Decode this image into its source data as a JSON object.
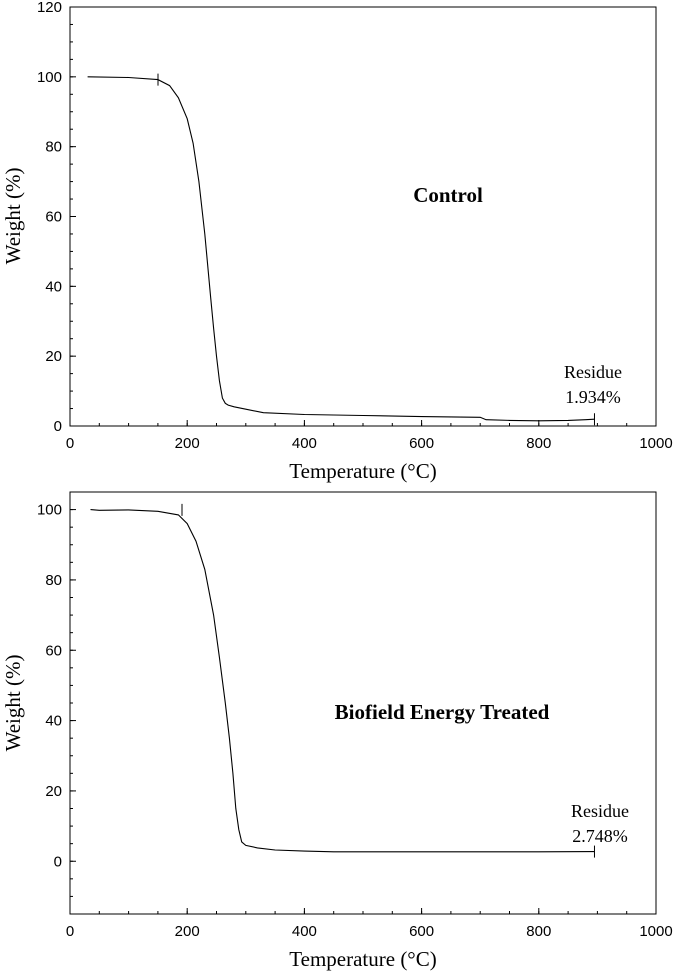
{
  "chart_data": [
    {
      "type": "line",
      "title": "Control",
      "xlabel": "Temperature (°C)",
      "ylabel": "Weight (%)",
      "xlim": [
        0,
        1000
      ],
      "ylim": [
        0,
        120
      ],
      "xticks": [
        "0",
        "200",
        "400",
        "600",
        "800",
        "1000"
      ],
      "yticks": [
        "0",
        "20",
        "40",
        "60",
        "80",
        "100",
        "120"
      ],
      "annotation": {
        "line1": "Residue",
        "line2": "1.934%",
        "x": 895,
        "y": 1.934
      },
      "grid": false,
      "series": [
        {
          "x": [
            30,
            100,
            150,
            170,
            185,
            200,
            210,
            220,
            230,
            240,
            245,
            250,
            255,
            260,
            265,
            270,
            280,
            300,
            330,
            400,
            500,
            600,
            700,
            710,
            750,
            800,
            850,
            880,
            895
          ],
          "y": [
            100,
            99.8,
            99.2,
            97.5,
            94,
            88,
            81,
            70,
            55,
            37,
            28,
            20,
            13,
            8,
            6.5,
            6,
            5.5,
            4.8,
            3.8,
            3.3,
            3.0,
            2.7,
            2.5,
            1.8,
            1.6,
            1.5,
            1.6,
            1.8,
            1.934
          ]
        }
      ]
    },
    {
      "type": "line",
      "title": "Biofield Energy Treated",
      "xlabel": "Temperature (°C)",
      "ylabel": "Weight (%)",
      "xlim": [
        0,
        1000
      ],
      "ylim": [
        -15,
        105
      ],
      "xticks": [
        "0",
        "200",
        "400",
        "600",
        "800",
        "1000"
      ],
      "yticks": [
        "0",
        "20",
        "40",
        "60",
        "80",
        "100"
      ],
      "annotation": {
        "line1": "Residue",
        "line2": "2.748%",
        "x": 895,
        "y": 2.748
      },
      "grid": false,
      "series": [
        {
          "x": [
            35,
            50,
            100,
            150,
            185,
            200,
            215,
            230,
            245,
            255,
            265,
            272,
            278,
            283,
            288,
            293,
            300,
            320,
            350,
            400,
            450,
            600,
            800,
            895
          ],
          "y": [
            100,
            99.8,
            99.9,
            99.5,
            98.5,
            96,
            91,
            83,
            70,
            58,
            45,
            35,
            25,
            15,
            9,
            5.5,
            4.5,
            3.8,
            3.2,
            2.9,
            2.7,
            2.7,
            2.7,
            2.748
          ]
        }
      ]
    }
  ]
}
